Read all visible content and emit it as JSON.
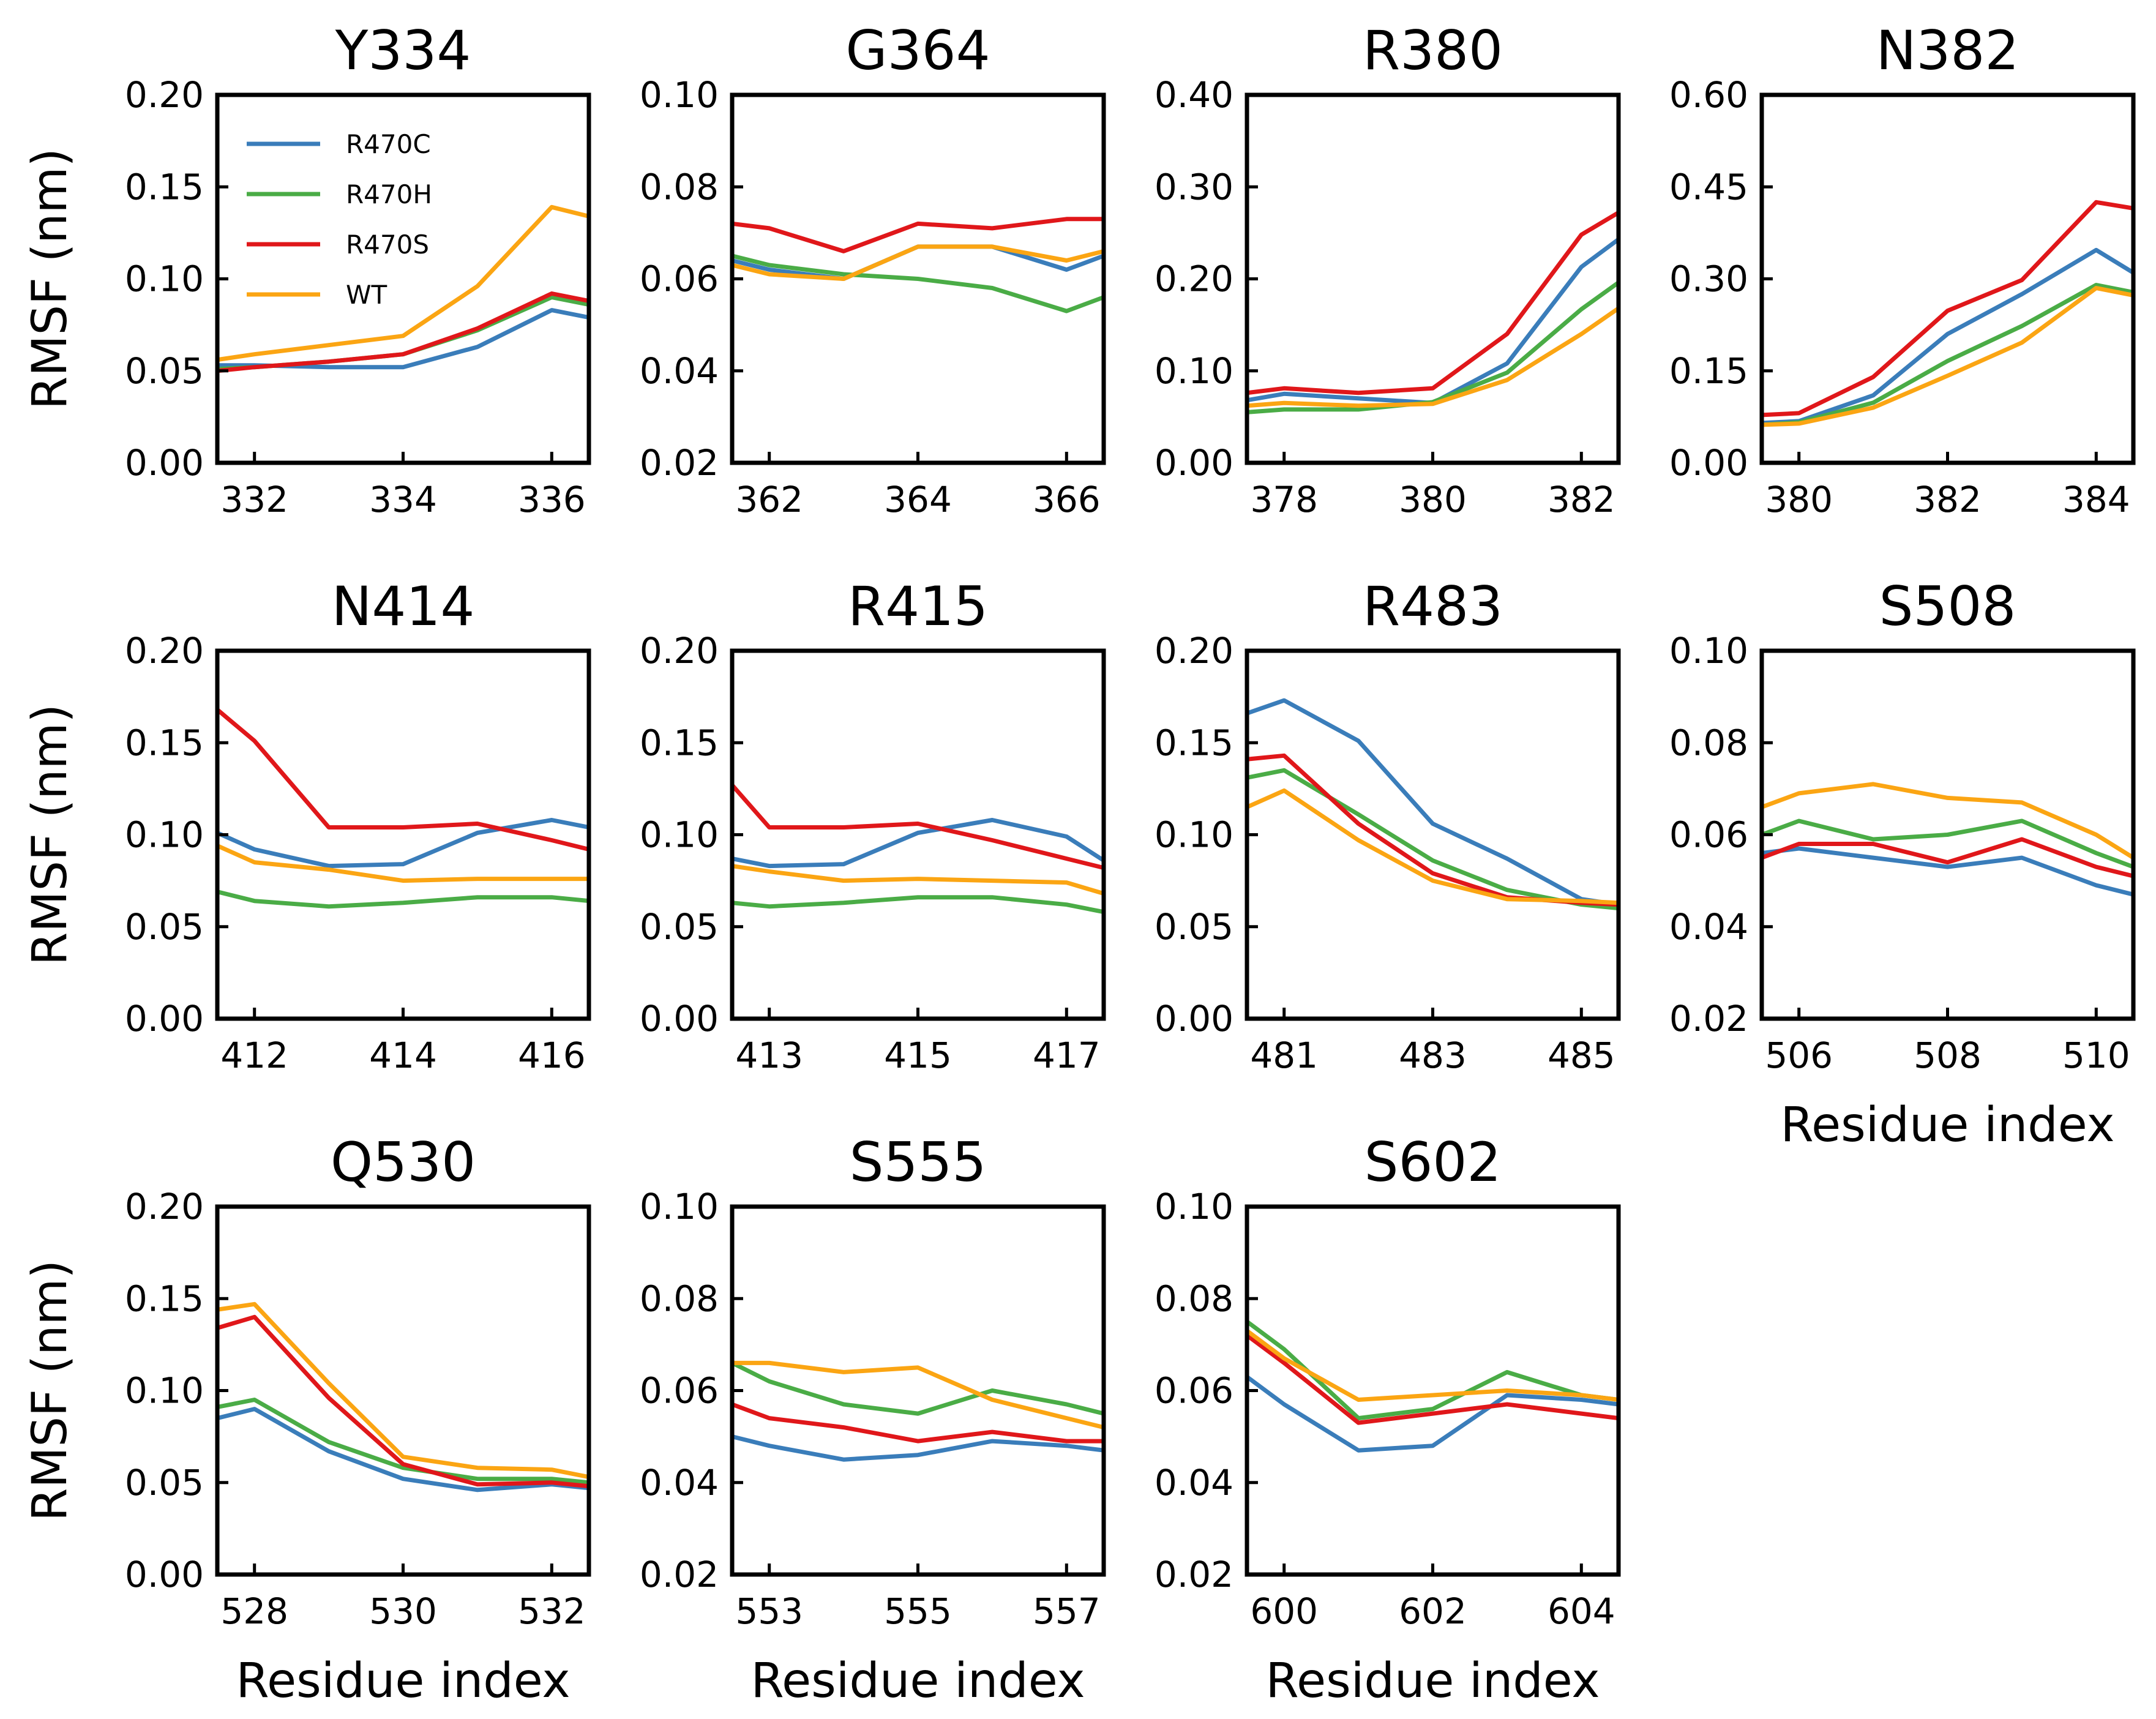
{
  "colors": {
    "R470C": "#3a7dba",
    "R470H": "#4aac46",
    "R470S": "#e0171a",
    "WT": "#fba513"
  },
  "legend": {
    "placement": "upper-left of first panel",
    "entries": [
      "R470C",
      "R470H",
      "R470S",
      "WT"
    ]
  },
  "axis_labels": {
    "ylabel": "RMSF (nm)",
    "xlabel": "Residue index"
  },
  "chart_data": [
    {
      "type": "line",
      "title": "Y334",
      "x": [
        331.5,
        332,
        333,
        334,
        335,
        336,
        336.5
      ],
      "xlim": [
        331.5,
        336.5
      ],
      "xticks": [
        332,
        334,
        336
      ],
      "xtick_labels": [
        "332",
        "334",
        "336"
      ],
      "ylim": [
        0,
        0.2
      ],
      "yticks": [
        0,
        0.05,
        0.1,
        0.15,
        0.2
      ],
      "ytick_labels": [
        "0.00",
        "0.05",
        "0.10",
        "0.15",
        "0.20"
      ],
      "series": [
        {
          "name": "R470C",
          "values": [
            0.053,
            0.053,
            0.052,
            0.052,
            0.063,
            0.083,
            0.079
          ]
        },
        {
          "name": "R470H",
          "values": [
            0.051,
            0.052,
            0.055,
            0.059,
            0.072,
            0.09,
            0.086
          ]
        },
        {
          "name": "R470S",
          "values": [
            0.05,
            0.052,
            0.055,
            0.059,
            0.073,
            0.092,
            0.088
          ]
        },
        {
          "name": "WT",
          "values": [
            0.056,
            0.059,
            0.064,
            0.069,
            0.096,
            0.139,
            0.134
          ]
        }
      ]
    },
    {
      "type": "line",
      "title": "G364",
      "x": [
        361.5,
        362,
        363,
        364,
        365,
        366,
        366.5
      ],
      "xlim": [
        361.5,
        366.5
      ],
      "xticks": [
        362,
        364,
        366
      ],
      "xtick_labels": [
        "362",
        "364",
        "366"
      ],
      "ylim": [
        0.02,
        0.1
      ],
      "yticks": [
        0.02,
        0.04,
        0.06,
        0.08,
        0.1
      ],
      "ytick_labels": [
        "0.02",
        "0.04",
        "0.06",
        "0.08",
        "0.10"
      ],
      "series": [
        {
          "name": "R470C",
          "values": [
            0.064,
            0.062,
            0.06,
            0.067,
            0.067,
            0.062,
            0.065
          ]
        },
        {
          "name": "R470H",
          "values": [
            0.065,
            0.063,
            0.061,
            0.06,
            0.058,
            0.053,
            0.056
          ]
        },
        {
          "name": "R470S",
          "values": [
            0.072,
            0.071,
            0.066,
            0.072,
            0.071,
            0.073,
            0.073
          ]
        },
        {
          "name": "WT",
          "values": [
            0.063,
            0.061,
            0.06,
            0.067,
            0.067,
            0.064,
            0.066
          ]
        }
      ]
    },
    {
      "type": "line",
      "title": "R380",
      "x": [
        377.5,
        378,
        379,
        380,
        381,
        382,
        382.5
      ],
      "xlim": [
        377.5,
        382.5
      ],
      "xticks": [
        378,
        380,
        382
      ],
      "xtick_labels": [
        "378",
        "380",
        "382"
      ],
      "ylim": [
        0,
        0.4
      ],
      "yticks": [
        0,
        0.1,
        0.2,
        0.3,
        0.4
      ],
      "ytick_labels": [
        "0.00",
        "0.10",
        "0.20",
        "0.30",
        "0.40"
      ],
      "series": [
        {
          "name": "R470C",
          "values": [
            0.068,
            0.075,
            0.07,
            0.065,
            0.108,
            0.213,
            0.243
          ]
        },
        {
          "name": "R470H",
          "values": [
            0.055,
            0.058,
            0.058,
            0.066,
            0.098,
            0.167,
            0.196
          ]
        },
        {
          "name": "R470S",
          "values": [
            0.076,
            0.081,
            0.076,
            0.081,
            0.14,
            0.248,
            0.272
          ]
        },
        {
          "name": "WT",
          "values": [
            0.062,
            0.065,
            0.062,
            0.064,
            0.09,
            0.14,
            0.168
          ]
        }
      ]
    },
    {
      "type": "line",
      "title": "N382",
      "x": [
        379.5,
        380,
        381,
        382,
        383,
        384,
        384.5
      ],
      "xlim": [
        379.5,
        384.5
      ],
      "xticks": [
        380,
        382,
        384
      ],
      "xtick_labels": [
        "380",
        "382",
        "384"
      ],
      "ylim": [
        0,
        0.6
      ],
      "yticks": [
        0,
        0.15,
        0.3,
        0.45,
        0.6
      ],
      "ytick_labels": [
        "0.00",
        "0.15",
        "0.30",
        "0.45",
        "0.60"
      ],
      "series": [
        {
          "name": "R470C",
          "values": [
            0.065,
            0.068,
            0.11,
            0.21,
            0.275,
            0.347,
            0.31
          ]
        },
        {
          "name": "R470H",
          "values": [
            0.062,
            0.066,
            0.098,
            0.166,
            0.223,
            0.29,
            0.278
          ]
        },
        {
          "name": "R470S",
          "values": [
            0.078,
            0.081,
            0.14,
            0.248,
            0.298,
            0.425,
            0.415
          ]
        },
        {
          "name": "WT",
          "values": [
            0.062,
            0.064,
            0.09,
            0.142,
            0.196,
            0.285,
            0.273
          ]
        }
      ]
    },
    {
      "type": "line",
      "title": "N414",
      "x": [
        411.5,
        412,
        413,
        414,
        415,
        416,
        416.5
      ],
      "xlim": [
        411.5,
        416.5
      ],
      "xticks": [
        412,
        414,
        416
      ],
      "xtick_labels": [
        "412",
        "414",
        "416"
      ],
      "ylim": [
        0,
        0.2
      ],
      "yticks": [
        0,
        0.05,
        0.1,
        0.15,
        0.2
      ],
      "ytick_labels": [
        "0.00",
        "0.05",
        "0.10",
        "0.15",
        "0.20"
      ],
      "series": [
        {
          "name": "R470C",
          "values": [
            0.101,
            0.092,
            0.083,
            0.084,
            0.101,
            0.108,
            0.104
          ]
        },
        {
          "name": "R470H",
          "values": [
            0.069,
            0.064,
            0.061,
            0.063,
            0.066,
            0.066,
            0.064
          ]
        },
        {
          "name": "R470S",
          "values": [
            0.168,
            0.151,
            0.104,
            0.104,
            0.106,
            0.097,
            0.092
          ]
        },
        {
          "name": "WT",
          "values": [
            0.094,
            0.085,
            0.081,
            0.075,
            0.076,
            0.076,
            0.076
          ]
        }
      ]
    },
    {
      "type": "line",
      "title": "R415",
      "x": [
        412.5,
        413,
        414,
        415,
        416,
        417,
        417.5
      ],
      "xlim": [
        412.5,
        417.5
      ],
      "xticks": [
        413,
        415,
        417
      ],
      "xtick_labels": [
        "413",
        "415",
        "417"
      ],
      "ylim": [
        0,
        0.2
      ],
      "yticks": [
        0,
        0.05,
        0.1,
        0.15,
        0.2
      ],
      "ytick_labels": [
        "0.00",
        "0.05",
        "0.10",
        "0.15",
        "0.20"
      ],
      "series": [
        {
          "name": "R470C",
          "values": [
            0.087,
            0.083,
            0.084,
            0.101,
            0.108,
            0.099,
            0.086
          ]
        },
        {
          "name": "R470H",
          "values": [
            0.063,
            0.061,
            0.063,
            0.066,
            0.066,
            0.062,
            0.058
          ]
        },
        {
          "name": "R470S",
          "values": [
            0.127,
            0.104,
            0.104,
            0.106,
            0.097,
            0.087,
            0.082
          ]
        },
        {
          "name": "WT",
          "values": [
            0.083,
            0.08,
            0.075,
            0.076,
            0.075,
            0.074,
            0.068
          ]
        }
      ]
    },
    {
      "type": "line",
      "title": "R483",
      "x": [
        480.5,
        481,
        482,
        483,
        484,
        485,
        485.5
      ],
      "xlim": [
        480.5,
        485.5
      ],
      "xticks": [
        481,
        483,
        485
      ],
      "xtick_labels": [
        "481",
        "483",
        "485"
      ],
      "ylim": [
        0,
        0.2
      ],
      "yticks": [
        0,
        0.05,
        0.1,
        0.15,
        0.2
      ],
      "ytick_labels": [
        "0.00",
        "0.05",
        "0.10",
        "0.15",
        "0.20"
      ],
      "series": [
        {
          "name": "R470C",
          "values": [
            0.166,
            0.173,
            0.151,
            0.106,
            0.087,
            0.065,
            0.062
          ]
        },
        {
          "name": "R470H",
          "values": [
            0.131,
            0.135,
            0.111,
            0.086,
            0.07,
            0.062,
            0.06
          ]
        },
        {
          "name": "R470S",
          "values": [
            0.141,
            0.143,
            0.106,
            0.079,
            0.066,
            0.063,
            0.062
          ]
        },
        {
          "name": "WT",
          "values": [
            0.115,
            0.124,
            0.097,
            0.075,
            0.065,
            0.064,
            0.063
          ]
        }
      ]
    },
    {
      "type": "line",
      "title": "S508",
      "xlabel": "Residue index",
      "x": [
        505.5,
        506,
        507,
        508,
        509,
        510,
        510.5
      ],
      "xlim": [
        505.5,
        510.5
      ],
      "xticks": [
        506,
        508,
        510
      ],
      "xtick_labels": [
        "506",
        "508",
        "510"
      ],
      "ylim": [
        0.02,
        0.1
      ],
      "yticks": [
        0.02,
        0.04,
        0.06,
        0.08,
        0.1
      ],
      "ytick_labels": [
        "0.02",
        "0.04",
        "0.06",
        "0.08",
        "0.10"
      ],
      "series": [
        {
          "name": "R470C",
          "values": [
            0.056,
            0.057,
            0.055,
            0.053,
            0.055,
            0.049,
            0.047
          ]
        },
        {
          "name": "R470H",
          "values": [
            0.06,
            0.063,
            0.059,
            0.06,
            0.063,
            0.056,
            0.053
          ]
        },
        {
          "name": "R470S",
          "values": [
            0.055,
            0.058,
            0.058,
            0.054,
            0.059,
            0.053,
            0.051
          ]
        },
        {
          "name": "WT",
          "values": [
            0.066,
            0.069,
            0.071,
            0.068,
            0.067,
            0.06,
            0.055
          ]
        }
      ]
    },
    {
      "type": "line",
      "title": "Q530",
      "xlabel": "Residue index",
      "x": [
        527.5,
        528,
        529,
        530,
        531,
        532,
        532.5
      ],
      "xlim": [
        527.5,
        532.5
      ],
      "xticks": [
        528,
        530,
        532
      ],
      "xtick_labels": [
        "528",
        "530",
        "532"
      ],
      "ylim": [
        0,
        0.2
      ],
      "yticks": [
        0,
        0.05,
        0.1,
        0.15,
        0.2
      ],
      "ytick_labels": [
        "0.00",
        "0.05",
        "0.10",
        "0.15",
        "0.20"
      ],
      "series": [
        {
          "name": "R470C",
          "values": [
            0.085,
            0.09,
            0.067,
            0.052,
            0.046,
            0.049,
            0.047
          ]
        },
        {
          "name": "R470H",
          "values": [
            0.091,
            0.095,
            0.072,
            0.058,
            0.052,
            0.052,
            0.05
          ]
        },
        {
          "name": "R470S",
          "values": [
            0.134,
            0.14,
            0.096,
            0.06,
            0.049,
            0.05,
            0.048
          ]
        },
        {
          "name": "WT",
          "values": [
            0.144,
            0.147,
            0.104,
            0.064,
            0.058,
            0.057,
            0.053
          ]
        }
      ]
    },
    {
      "type": "line",
      "title": "S555",
      "xlabel": "Residue index",
      "x": [
        552.5,
        553,
        554,
        555,
        556,
        557,
        557.5
      ],
      "xlim": [
        552.5,
        557.5
      ],
      "xticks": [
        553,
        555,
        557
      ],
      "xtick_labels": [
        "553",
        "555",
        "557"
      ],
      "ylim": [
        0.02,
        0.1
      ],
      "yticks": [
        0.02,
        0.04,
        0.06,
        0.08,
        0.1
      ],
      "ytick_labels": [
        "0.02",
        "0.04",
        "0.06",
        "0.08",
        "0.10"
      ],
      "series": [
        {
          "name": "R470C",
          "values": [
            0.05,
            0.048,
            0.045,
            0.046,
            0.049,
            0.048,
            0.047
          ]
        },
        {
          "name": "R470H",
          "values": [
            0.066,
            0.062,
            0.057,
            0.055,
            0.06,
            0.057,
            0.055
          ]
        },
        {
          "name": "R470S",
          "values": [
            0.057,
            0.054,
            0.052,
            0.049,
            0.051,
            0.049,
            0.049
          ]
        },
        {
          "name": "WT",
          "values": [
            0.066,
            0.066,
            0.064,
            0.065,
            0.058,
            0.054,
            0.052
          ]
        }
      ]
    },
    {
      "type": "line",
      "title": "S602",
      "xlabel": "Residue index",
      "x": [
        599.5,
        600,
        601,
        602,
        603,
        604,
        604.5
      ],
      "xlim": [
        599.5,
        604.5
      ],
      "xticks": [
        600,
        602,
        604
      ],
      "xtick_labels": [
        "600",
        "602",
        "604"
      ],
      "ylim": [
        0.02,
        0.1
      ],
      "yticks": [
        0.02,
        0.04,
        0.06,
        0.08,
        0.1
      ],
      "ytick_labels": [
        "0.02",
        "0.04",
        "0.06",
        "0.08",
        "0.10"
      ],
      "series": [
        {
          "name": "R470C",
          "values": [
            0.063,
            0.057,
            0.047,
            0.048,
            0.059,
            0.058,
            0.057
          ]
        },
        {
          "name": "R470H",
          "values": [
            0.075,
            0.069,
            0.054,
            0.056,
            0.064,
            0.059,
            0.058
          ]
        },
        {
          "name": "R470S",
          "values": [
            0.072,
            0.066,
            0.053,
            0.055,
            0.057,
            0.055,
            0.054
          ]
        },
        {
          "name": "WT",
          "values": [
            0.073,
            0.067,
            0.058,
            0.059,
            0.06,
            0.059,
            0.058
          ]
        }
      ]
    }
  ]
}
